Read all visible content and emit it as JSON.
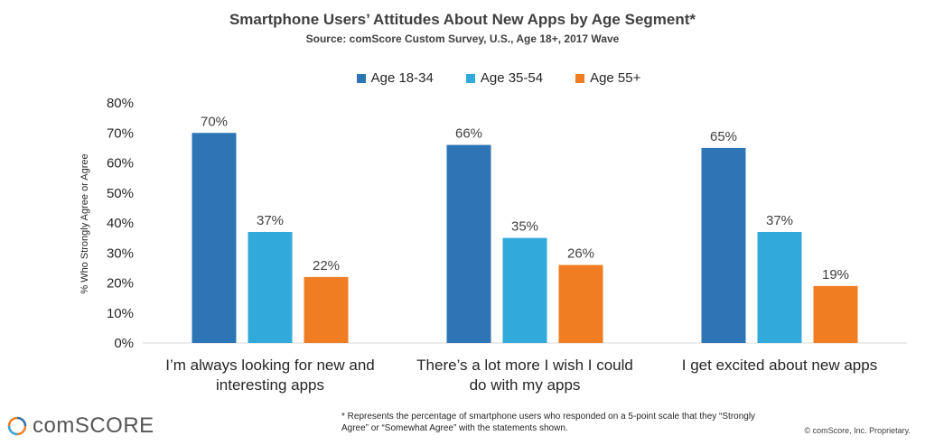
{
  "title": "Smartphone Users’ Attitudes About New Apps by Age Segment*",
  "subtitle": "Source: comScore Custom Survey, U.S., Age 18+, 2017 Wave",
  "footnote": "* Represents the percentage of smartphone users who responded on a 5-point scale that they “Strongly Agree” or “Somewhat Agree” with the statements shown.",
  "copyright": "© comScore, Inc. Proprietary.",
  "logo_text": "comSCORE",
  "colors": {
    "age_18_34": "#2E75B6",
    "age_35_54": "#31A9DB",
    "age_55_plus": "#F07D22"
  },
  "chart_data": {
    "type": "bar",
    "ylabel": "% Who Strongly Agree or Agree",
    "ylim": [
      0,
      80
    ],
    "y_ticks": [
      "0%",
      "10%",
      "20%",
      "30%",
      "40%",
      "50%",
      "60%",
      "70%",
      "80%"
    ],
    "legend_position": "top-center",
    "grid": false,
    "categories": [
      [
        "I’m always looking for new and",
        "interesting apps"
      ],
      [
        "There’s a lot more I wish I could",
        "do with my apps"
      ],
      [
        "I get excited about new apps"
      ]
    ],
    "series": [
      {
        "name": "Age 18-34",
        "values": [
          70,
          66,
          65
        ],
        "labels": [
          "70%",
          "66%",
          "65%"
        ]
      },
      {
        "name": "Age 35-54",
        "values": [
          37,
          35,
          37
        ],
        "labels": [
          "37%",
          "35%",
          "37%"
        ]
      },
      {
        "name": "Age 55+",
        "values": [
          22,
          26,
          19
        ],
        "labels": [
          "22%",
          "26%",
          "19%"
        ]
      }
    ]
  }
}
